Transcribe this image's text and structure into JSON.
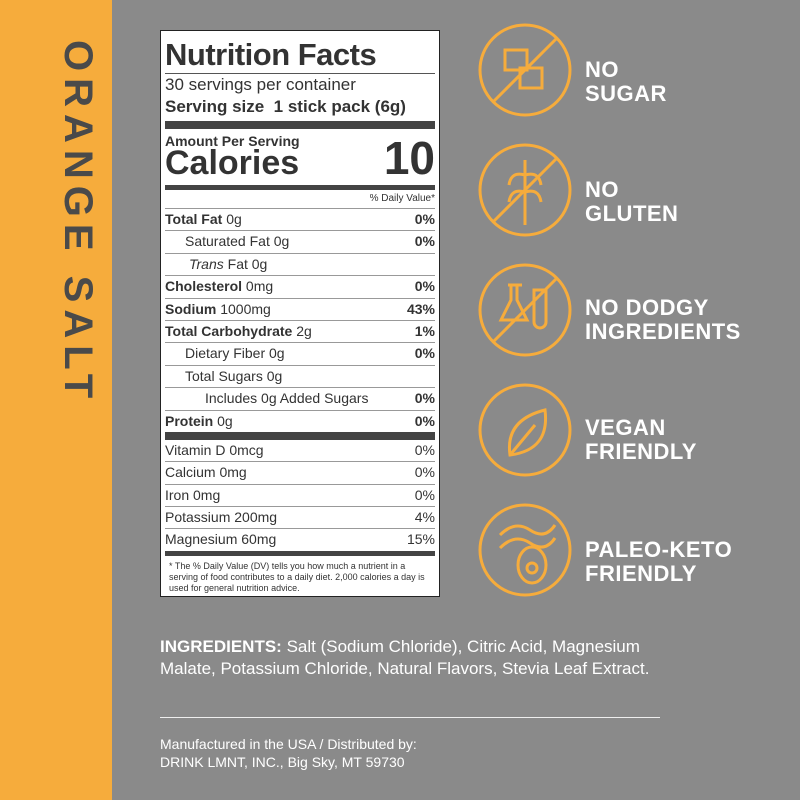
{
  "side_label": "ORANGE SALT",
  "nutrition": {
    "title": "Nutrition Facts",
    "servings": "30 servings per container",
    "serving_size_label": "Serving size",
    "serving_size_value": "1 stick pack (6g)",
    "amount_per_serving": "Amount Per Serving",
    "calories_label": "Calories",
    "calories_value": "10",
    "dv_header": "% Daily Value*",
    "rows": [
      {
        "name": "Total Fat",
        "amount": "0g",
        "dv": "0%"
      },
      {
        "name": "Saturated Fat 0g",
        "dv": "0%"
      },
      {
        "name": "Trans",
        "amount": "Fat 0g"
      },
      {
        "name": "Cholesterol",
        "amount": "0mg",
        "dv": "0%"
      },
      {
        "name": "Sodium",
        "amount": "1000mg",
        "dv": "43%"
      },
      {
        "name": "Total Carbohydrate",
        "amount": "2g",
        "dv": "1%"
      },
      {
        "name": "Dietary Fiber 0g",
        "dv": "0%"
      },
      {
        "name": "Total Sugars 0g"
      },
      {
        "name": "Includes 0g Added Sugars",
        "dv": "0%"
      },
      {
        "name": "Protein",
        "amount": "0g",
        "dv": "0%"
      }
    ],
    "vitamins": [
      {
        "name": "Vitamin D 0mcg",
        "dv": "0%"
      },
      {
        "name": "Calcium 0mg",
        "dv": "0%"
      },
      {
        "name": "Iron 0mg",
        "dv": "0%"
      },
      {
        "name": "Potassium 200mg",
        "dv": "4%"
      },
      {
        "name": "Magnesium 60mg",
        "dv": "15%"
      }
    ],
    "footnote": "* The % Daily Value (DV) tells you how much a nutrient in a serving of food contributes to a daily diet. 2,000 calories a day is used for general nutrition advice."
  },
  "claims": [
    {
      "lines": [
        "NO",
        "SUGAR"
      ]
    },
    {
      "lines": [
        "NO",
        "GLUTEN"
      ]
    },
    {
      "lines": [
        "NO DODGY",
        "INGREDIENTS"
      ]
    },
    {
      "lines": [
        "VEGAN",
        "FRIENDLY"
      ]
    },
    {
      "lines": [
        "PALEO-KETO",
        "FRIENDLY"
      ]
    }
  ],
  "ingredients": {
    "label": "INGREDIENTS:",
    "text": "Salt (Sodium Chloride), Citric Acid, Magnesium Malate, Potassium Chloride, Natural Flavors, Stevia Leaf Extract."
  },
  "manufacturer": [
    "Manufactured in the USA / Distributed by:",
    "DRINK LMNT, INC., Big Sky, MT 59730"
  ]
}
